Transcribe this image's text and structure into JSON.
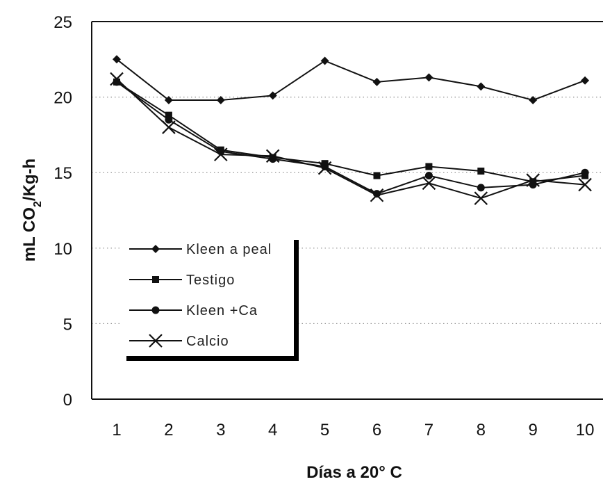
{
  "chart_data": {
    "type": "line",
    "x": [
      1,
      2,
      3,
      4,
      5,
      6,
      7,
      8,
      9,
      10
    ],
    "xlabel": "Días a 20° C",
    "ylabel": "mL CO2/Kg-h",
    "ylabel_main": "mL CO",
    "ylabel_sub": "2",
    "ylabel_tail": "/Kg-h",
    "ylim": [
      0,
      25
    ],
    "yticks": [
      0,
      5,
      10,
      15,
      20,
      25
    ],
    "grid": "dotted horizontal",
    "legend_position": "left-center",
    "series": [
      {
        "name": "Kleen a peal",
        "marker": "diamond",
        "values": [
          22.5,
          19.8,
          19.8,
          20.1,
          22.4,
          21.0,
          21.3,
          20.7,
          19.8,
          21.1
        ]
      },
      {
        "name": "Testigo",
        "marker": "square",
        "values": [
          21.0,
          18.8,
          16.5,
          16.0,
          15.6,
          14.8,
          15.4,
          15.1,
          14.4,
          14.8
        ]
      },
      {
        "name": "Kleen +Ca",
        "marker": "circle",
        "values": [
          21.0,
          18.5,
          16.4,
          15.9,
          15.4,
          13.6,
          14.8,
          14.0,
          14.2,
          15.0
        ]
      },
      {
        "name": "Calcio",
        "marker": "x",
        "values": [
          21.2,
          18.0,
          16.2,
          16.1,
          15.3,
          13.5,
          14.3,
          13.3,
          14.5,
          14.2
        ]
      }
    ]
  }
}
